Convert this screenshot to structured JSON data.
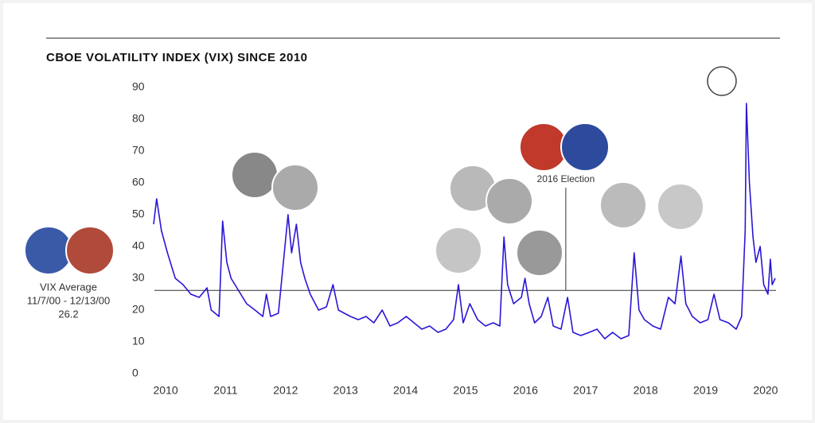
{
  "chart_data": {
    "type": "line",
    "title": "CBOE VOLATILITY INDEX (VIX) SINCE 2010",
    "series": [
      {
        "name": "VIX",
        "color": "#2a16d6",
        "x": [
          2009.8,
          2009.85,
          2009.93,
          2010.03,
          2010.16,
          2010.29,
          2010.42,
          2010.56,
          2010.69,
          2010.76,
          2010.89,
          2010.95,
          2011.02,
          2011.09,
          2011.22,
          2011.35,
          2011.49,
          2011.62,
          2011.68,
          2011.75,
          2011.88,
          2012.04,
          2012.1,
          2012.18,
          2012.25,
          2012.32,
          2012.41,
          2012.55,
          2012.68,
          2012.79,
          2012.88,
          2013.08,
          2013.21,
          2013.34,
          2013.47,
          2013.61,
          2013.74,
          2013.87,
          2014.01,
          2014.14,
          2014.27,
          2014.4,
          2014.54,
          2014.67,
          2014.8,
          2014.88,
          2014.96,
          2015.07,
          2015.2,
          2015.33,
          2015.46,
          2015.57,
          2015.64,
          2015.7,
          2015.8,
          2015.93,
          2015.99,
          2016.06,
          2016.15,
          2016.26,
          2016.37,
          2016.46,
          2016.59,
          2016.7,
          2016.79,
          2016.92,
          2017.06,
          2017.19,
          2017.32,
          2017.45,
          2017.59,
          2017.72,
          2017.81,
          2017.89,
          2017.98,
          2018.12,
          2018.25,
          2018.38,
          2018.49,
          2018.59,
          2018.67,
          2018.78,
          2018.91,
          2019.04,
          2019.14,
          2019.24,
          2019.38,
          2019.51,
          2019.6,
          2019.66,
          2019.68,
          2019.73,
          2019.79,
          2019.84,
          2019.91,
          2019.97,
          2020.04,
          2020.08,
          2020.11,
          2020.16
        ],
        "values": [
          47,
          55,
          45,
          38,
          30,
          28,
          25,
          24,
          27,
          20,
          18,
          48,
          35,
          30,
          26,
          22,
          20,
          18,
          25,
          18,
          19,
          50,
          38,
          47,
          35,
          30,
          25,
          20,
          21,
          28,
          20,
          18,
          17,
          18,
          16,
          20,
          15,
          16,
          18,
          16,
          14,
          15,
          13,
          14,
          17,
          28,
          16,
          22,
          17,
          15,
          16,
          15,
          43,
          28,
          22,
          24,
          30,
          22,
          16,
          18,
          24,
          15,
          14,
          24,
          13,
          12,
          13,
          14,
          11,
          13,
          11,
          12,
          38,
          20,
          17,
          15,
          14,
          24,
          22,
          37,
          22,
          18,
          16,
          17,
          25,
          17,
          16,
          14,
          18,
          45,
          85,
          60,
          43,
          35,
          40,
          28,
          25,
          36,
          28,
          30
        ]
      }
    ],
    "xlim": [
      2009.76,
      2020.24
    ],
    "xticks": [
      2010,
      2011,
      2012,
      2013,
      2014,
      2015,
      2016,
      2017,
      2018,
      2019,
      2020
    ],
    "ylim": [
      0,
      90
    ],
    "yticks": [
      0,
      10,
      20,
      30,
      40,
      50,
      60,
      70,
      80,
      90
    ],
    "reference_line": {
      "value": 26.2,
      "label": "VIX Average",
      "period": "11/7/00 - 12/13/00"
    },
    "annotation": {
      "x": 2016.67,
      "text": "2016 Election"
    }
  }
}
